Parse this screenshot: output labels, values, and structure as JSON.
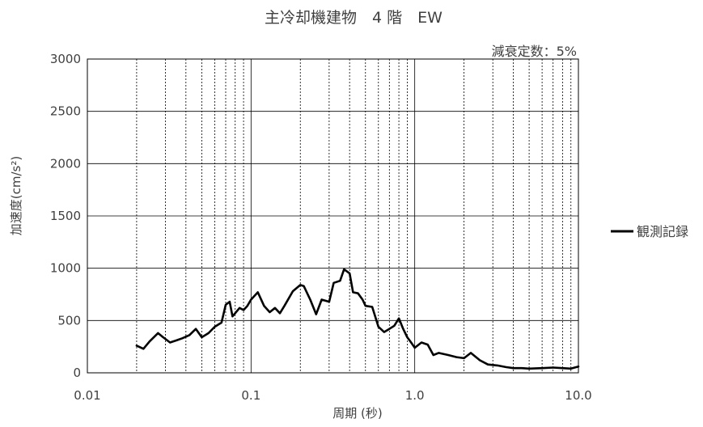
{
  "chart_data": {
    "type": "line",
    "title": "主冷却機建物　4 階　EW",
    "annotation": "減衰定数：5%",
    "xlabel": "周期 (秒)",
    "ylabel": "加速度(cm/s²)",
    "x_scale": "log",
    "xlim": [
      0.01,
      10.0
    ],
    "ylim": [
      0,
      3000
    ],
    "x_ticks": [
      {
        "value": 0.01,
        "label": "0.01"
      },
      {
        "value": 0.1,
        "label": "0.1"
      },
      {
        "value": 1.0,
        "label": "1.0"
      },
      {
        "value": 10.0,
        "label": "10.0"
      }
    ],
    "y_ticks": [
      {
        "value": 0,
        "label": "0"
      },
      {
        "value": 500,
        "label": "500"
      },
      {
        "value": 1000,
        "label": "1000"
      },
      {
        "value": 1500,
        "label": "1500"
      },
      {
        "value": 2000,
        "label": "2000"
      },
      {
        "value": 2500,
        "label": "2500"
      },
      {
        "value": 3000,
        "label": "3000"
      }
    ],
    "grid": true,
    "legend_position": "right",
    "series": [
      {
        "name": "観測記録",
        "color": "#000000",
        "x": [
          0.02,
          0.022,
          0.024,
          0.027,
          0.029,
          0.032,
          0.035,
          0.038,
          0.042,
          0.046,
          0.05,
          0.055,
          0.06,
          0.066,
          0.07,
          0.074,
          0.077,
          0.08,
          0.085,
          0.09,
          0.095,
          0.1,
          0.11,
          0.12,
          0.13,
          0.14,
          0.15,
          0.16,
          0.18,
          0.2,
          0.21,
          0.23,
          0.25,
          0.27,
          0.3,
          0.32,
          0.35,
          0.37,
          0.4,
          0.42,
          0.45,
          0.48,
          0.5,
          0.55,
          0.6,
          0.65,
          0.7,
          0.75,
          0.8,
          0.85,
          0.9,
          0.95,
          1.0,
          1.1,
          1.2,
          1.3,
          1.4,
          1.6,
          1.8,
          2.0,
          2.2,
          2.5,
          2.8,
          3.2,
          3.6,
          4.0,
          4.5,
          5.0,
          6.0,
          7.0,
          8.0,
          9.0,
          10.0
        ],
        "values": [
          260,
          230,
          300,
          380,
          340,
          290,
          310,
          330,
          360,
          420,
          340,
          380,
          440,
          480,
          650,
          680,
          540,
          570,
          620,
          600,
          640,
          700,
          770,
          640,
          580,
          620,
          570,
          640,
          780,
          840,
          830,
          700,
          560,
          700,
          680,
          860,
          880,
          990,
          950,
          770,
          760,
          700,
          640,
          630,
          440,
          390,
          420,
          450,
          520,
          420,
          340,
          290,
          240,
          290,
          270,
          170,
          190,
          170,
          150,
          140,
          190,
          120,
          80,
          70,
          55,
          45,
          45,
          40,
          45,
          50,
          45,
          40,
          60
        ]
      }
    ]
  }
}
